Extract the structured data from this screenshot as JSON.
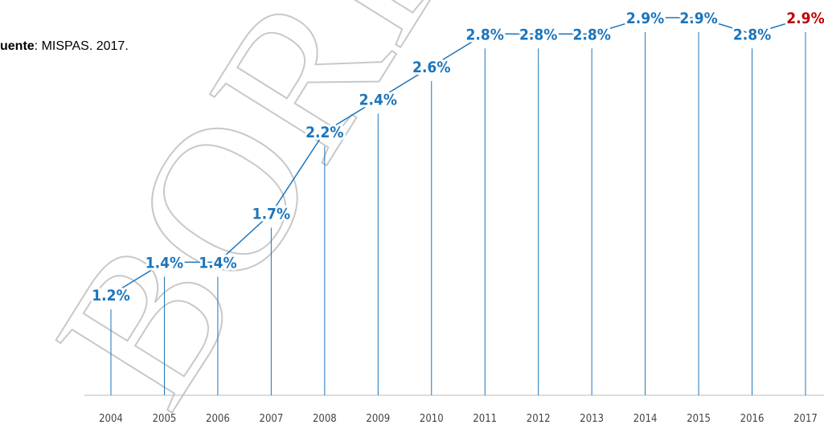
{
  "chart_data": {
    "type": "line",
    "source": {
      "label": "uente",
      "text": ": MISPAS. 2017."
    },
    "watermark": "BORRADOR",
    "categories": [
      "2004",
      "2005",
      "2006",
      "2007",
      "2008",
      "2009",
      "2010",
      "2011",
      "2012",
      "2013",
      "2014",
      "2015",
      "2016",
      "2017"
    ],
    "values": [
      1.2,
      1.4,
      1.4,
      1.7,
      2.2,
      2.4,
      2.6,
      2.8,
      2.8,
      2.8,
      2.9,
      2.9,
      2.8,
      2.9
    ],
    "value_labels": [
      "1.2%",
      "1.4%",
      "1.4%",
      "1.7%",
      "2.2%",
      "2.4%",
      "2.6%",
      "2.8%",
      "2.8%",
      "2.8%",
      "2.9%",
      "2.9%",
      "2.8%",
      "2.9%"
    ],
    "color": "#1b75bc",
    "highlight": {
      "category": "2017",
      "color": "#c00000"
    }
  }
}
